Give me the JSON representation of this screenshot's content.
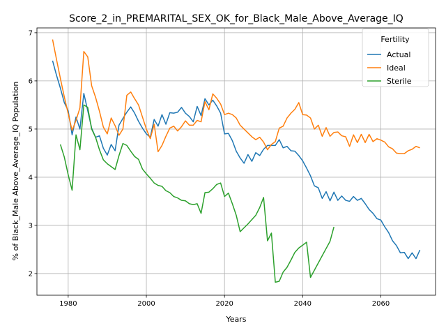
{
  "chart_data": {
    "type": "line",
    "title": "Score_2_in_PREMARITAL_SEX_OK_for_Black_Male_Above_Average_IQ",
    "xlabel": "Years",
    "ylabel": "% of Black_Male Above_Average_IQ Population",
    "xlim": [
      1972,
      2074
    ],
    "ylim": [
      1.55,
      7.1
    ],
    "xticks": [
      1980,
      2000,
      2020,
      2040,
      2060
    ],
    "yticks": [
      2,
      3,
      4,
      5,
      6,
      7
    ],
    "grid": true,
    "legend": {
      "title": "Fertility",
      "position": "top-right"
    },
    "series": [
      {
        "name": "Actual",
        "color": "#1f77b4",
        "points": [
          [
            1976,
            6.42
          ],
          [
            1977,
            6.12
          ],
          [
            1978,
            5.85
          ],
          [
            1979,
            5.55
          ],
          [
            1980,
            5.38
          ],
          [
            1981,
            4.88
          ],
          [
            1982,
            5.25
          ],
          [
            1983,
            5.0
          ],
          [
            1984,
            5.74
          ],
          [
            1985,
            5.38
          ],
          [
            1986,
            5.02
          ],
          [
            1987,
            4.83
          ],
          [
            1988,
            4.86
          ],
          [
            1989,
            4.6
          ],
          [
            1990,
            4.46
          ],
          [
            1991,
            4.68
          ],
          [
            1992,
            4.55
          ],
          [
            1993,
            5.08
          ],
          [
            1994,
            5.22
          ],
          [
            1995,
            5.35
          ],
          [
            1996,
            5.46
          ],
          [
            1997,
            5.33
          ],
          [
            1998,
            5.16
          ],
          [
            1999,
            5.02
          ],
          [
            2000,
            4.9
          ],
          [
            2001,
            4.83
          ],
          [
            2002,
            5.2
          ],
          [
            2003,
            5.06
          ],
          [
            2004,
            5.3
          ],
          [
            2005,
            5.1
          ],
          [
            2006,
            5.34
          ],
          [
            2007,
            5.33
          ],
          [
            2008,
            5.35
          ],
          [
            2009,
            5.45
          ],
          [
            2010,
            5.33
          ],
          [
            2011,
            5.26
          ],
          [
            2012,
            5.15
          ],
          [
            2013,
            5.47
          ],
          [
            2014,
            5.28
          ],
          [
            2015,
            5.63
          ],
          [
            2016,
            5.5
          ],
          [
            2017,
            5.6
          ],
          [
            2018,
            5.48
          ],
          [
            2019,
            5.33
          ],
          [
            2020,
            4.9
          ],
          [
            2021,
            4.91
          ],
          [
            2022,
            4.76
          ],
          [
            2023,
            4.54
          ],
          [
            2024,
            4.4
          ],
          [
            2025,
            4.29
          ],
          [
            2026,
            4.47
          ],
          [
            2027,
            4.33
          ],
          [
            2028,
            4.51
          ],
          [
            2029,
            4.45
          ],
          [
            2030,
            4.58
          ],
          [
            2031,
            4.66
          ],
          [
            2032,
            4.66
          ],
          [
            2033,
            4.66
          ],
          [
            2034,
            4.78
          ],
          [
            2035,
            4.61
          ],
          [
            2036,
            4.64
          ],
          [
            2037,
            4.55
          ],
          [
            2038,
            4.54
          ],
          [
            2039,
            4.45
          ],
          [
            2040,
            4.34
          ],
          [
            2041,
            4.19
          ],
          [
            2042,
            4.03
          ],
          [
            2043,
            3.82
          ],
          [
            2044,
            3.78
          ],
          [
            2045,
            3.56
          ],
          [
            2046,
            3.7
          ],
          [
            2047,
            3.51
          ],
          [
            2048,
            3.69
          ],
          [
            2049,
            3.52
          ],
          [
            2050,
            3.61
          ],
          [
            2051,
            3.52
          ],
          [
            2052,
            3.5
          ],
          [
            2053,
            3.6
          ],
          [
            2054,
            3.52
          ],
          [
            2055,
            3.56
          ],
          [
            2056,
            3.45
          ],
          [
            2057,
            3.33
          ],
          [
            2058,
            3.25
          ],
          [
            2059,
            3.14
          ],
          [
            2060,
            3.11
          ],
          [
            2061,
            2.97
          ],
          [
            2062,
            2.85
          ],
          [
            2063,
            2.68
          ],
          [
            2064,
            2.58
          ],
          [
            2065,
            2.43
          ],
          [
            2066,
            2.44
          ],
          [
            2067,
            2.31
          ],
          [
            2068,
            2.43
          ],
          [
            2069,
            2.31
          ],
          [
            2070,
            2.49
          ]
        ]
      },
      {
        "name": "Ideal",
        "color": "#ff7f0e",
        "points": [
          [
            1976,
            6.86
          ],
          [
            1977,
            6.45
          ],
          [
            1978,
            6.05
          ],
          [
            1979,
            5.67
          ],
          [
            1980,
            5.32
          ],
          [
            1981,
            4.97
          ],
          [
            1982,
            5.18
          ],
          [
            1983,
            5.44
          ],
          [
            1984,
            6.61
          ],
          [
            1985,
            6.5
          ],
          [
            1986,
            5.9
          ],
          [
            1987,
            5.66
          ],
          [
            1988,
            5.37
          ],
          [
            1989,
            5.04
          ],
          [
            1990,
            4.9
          ],
          [
            1991,
            5.23
          ],
          [
            1992,
            5.07
          ],
          [
            1993,
            4.87
          ],
          [
            1994,
            5.0
          ],
          [
            1995,
            5.7
          ],
          [
            1996,
            5.77
          ],
          [
            1997,
            5.63
          ],
          [
            1998,
            5.5
          ],
          [
            1999,
            5.25
          ],
          [
            2000,
            5.0
          ],
          [
            2001,
            4.8
          ],
          [
            2002,
            5.1
          ],
          [
            2003,
            4.53
          ],
          [
            2004,
            4.66
          ],
          [
            2005,
            4.85
          ],
          [
            2006,
            5.02
          ],
          [
            2007,
            5.06
          ],
          [
            2008,
            4.96
          ],
          [
            2009,
            5.05
          ],
          [
            2010,
            5.17
          ],
          [
            2011,
            5.08
          ],
          [
            2012,
            5.08
          ],
          [
            2013,
            5.18
          ],
          [
            2014,
            5.15
          ],
          [
            2015,
            5.57
          ],
          [
            2016,
            5.4
          ],
          [
            2017,
            5.73
          ],
          [
            2018,
            5.64
          ],
          [
            2019,
            5.52
          ],
          [
            2020,
            5.3
          ],
          [
            2021,
            5.33
          ],
          [
            2022,
            5.3
          ],
          [
            2023,
            5.23
          ],
          [
            2024,
            5.08
          ],
          [
            2025,
            5.0
          ],
          [
            2026,
            4.92
          ],
          [
            2027,
            4.84
          ],
          [
            2028,
            4.78
          ],
          [
            2029,
            4.83
          ],
          [
            2030,
            4.73
          ],
          [
            2031,
            4.57
          ],
          [
            2032,
            4.68
          ],
          [
            2033,
            4.74
          ],
          [
            2034,
            5.02
          ],
          [
            2035,
            5.06
          ],
          [
            2036,
            5.23
          ],
          [
            2037,
            5.33
          ],
          [
            2038,
            5.41
          ],
          [
            2039,
            5.55
          ],
          [
            2040,
            5.3
          ],
          [
            2041,
            5.29
          ],
          [
            2042,
            5.23
          ],
          [
            2043,
            5.0
          ],
          [
            2044,
            5.08
          ],
          [
            2045,
            4.85
          ],
          [
            2046,
            5.03
          ],
          [
            2047,
            4.85
          ],
          [
            2048,
            4.93
          ],
          [
            2049,
            4.94
          ],
          [
            2050,
            4.86
          ],
          [
            2051,
            4.84
          ],
          [
            2052,
            4.64
          ],
          [
            2053,
            4.88
          ],
          [
            2054,
            4.72
          ],
          [
            2055,
            4.89
          ],
          [
            2056,
            4.72
          ],
          [
            2057,
            4.89
          ],
          [
            2058,
            4.74
          ],
          [
            2059,
            4.8
          ],
          [
            2060,
            4.77
          ],
          [
            2061,
            4.73
          ],
          [
            2062,
            4.63
          ],
          [
            2063,
            4.59
          ],
          [
            2064,
            4.5
          ],
          [
            2065,
            4.49
          ],
          [
            2066,
            4.49
          ],
          [
            2067,
            4.55
          ],
          [
            2068,
            4.58
          ],
          [
            2069,
            4.64
          ],
          [
            2070,
            4.61
          ]
        ]
      },
      {
        "name": "Sterile",
        "color": "#2ca02c",
        "points": [
          [
            1978,
            4.68
          ],
          [
            1979,
            4.42
          ],
          [
            1980,
            4.05
          ],
          [
            1981,
            3.73
          ],
          [
            1982,
            4.88
          ],
          [
            1983,
            4.57
          ],
          [
            1984,
            5.5
          ],
          [
            1985,
            5.45
          ],
          [
            1986,
            5.0
          ],
          [
            1987,
            4.83
          ],
          [
            1988,
            4.57
          ],
          [
            1989,
            4.36
          ],
          [
            1990,
            4.28
          ],
          [
            1991,
            4.22
          ],
          [
            1992,
            4.16
          ],
          [
            1993,
            4.45
          ],
          [
            1994,
            4.7
          ],
          [
            1995,
            4.66
          ],
          [
            1996,
            4.54
          ],
          [
            1997,
            4.43
          ],
          [
            1998,
            4.37
          ],
          [
            1999,
            4.17
          ],
          [
            2000,
            4.07
          ],
          [
            2001,
            3.98
          ],
          [
            2002,
            3.88
          ],
          [
            2003,
            3.83
          ],
          [
            2004,
            3.81
          ],
          [
            2005,
            3.72
          ],
          [
            2006,
            3.68
          ],
          [
            2007,
            3.6
          ],
          [
            2008,
            3.57
          ],
          [
            2009,
            3.52
          ],
          [
            2010,
            3.51
          ],
          [
            2011,
            3.45
          ],
          [
            2012,
            3.43
          ],
          [
            2013,
            3.45
          ],
          [
            2014,
            3.25
          ],
          [
            2015,
            3.68
          ],
          [
            2016,
            3.69
          ],
          [
            2017,
            3.76
          ],
          [
            2018,
            3.85
          ],
          [
            2019,
            3.88
          ],
          [
            2020,
            3.6
          ],
          [
            2021,
            3.67
          ],
          [
            2022,
            3.45
          ],
          [
            2023,
            3.21
          ],
          [
            2024,
            2.87
          ],
          [
            2025,
            2.95
          ],
          [
            2026,
            3.03
          ],
          [
            2027,
            3.12
          ],
          [
            2028,
            3.21
          ],
          [
            2029,
            3.37
          ],
          [
            2030,
            3.58
          ],
          [
            2031,
            2.68
          ],
          [
            2032,
            2.84
          ],
          [
            2033,
            1.82
          ],
          [
            2034,
            1.84
          ],
          [
            2035,
            2.03
          ],
          [
            2036,
            2.13
          ],
          [
            2037,
            2.28
          ],
          [
            2038,
            2.44
          ],
          [
            2039,
            2.53
          ],
          [
            2040,
            2.59
          ],
          [
            2041,
            2.65
          ],
          [
            2042,
            1.92
          ],
          [
            2043,
            2.07
          ],
          [
            2044,
            2.22
          ],
          [
            2045,
            2.37
          ],
          [
            2046,
            2.52
          ],
          [
            2047,
            2.67
          ],
          [
            2048,
            2.97
          ]
        ]
      }
    ]
  }
}
